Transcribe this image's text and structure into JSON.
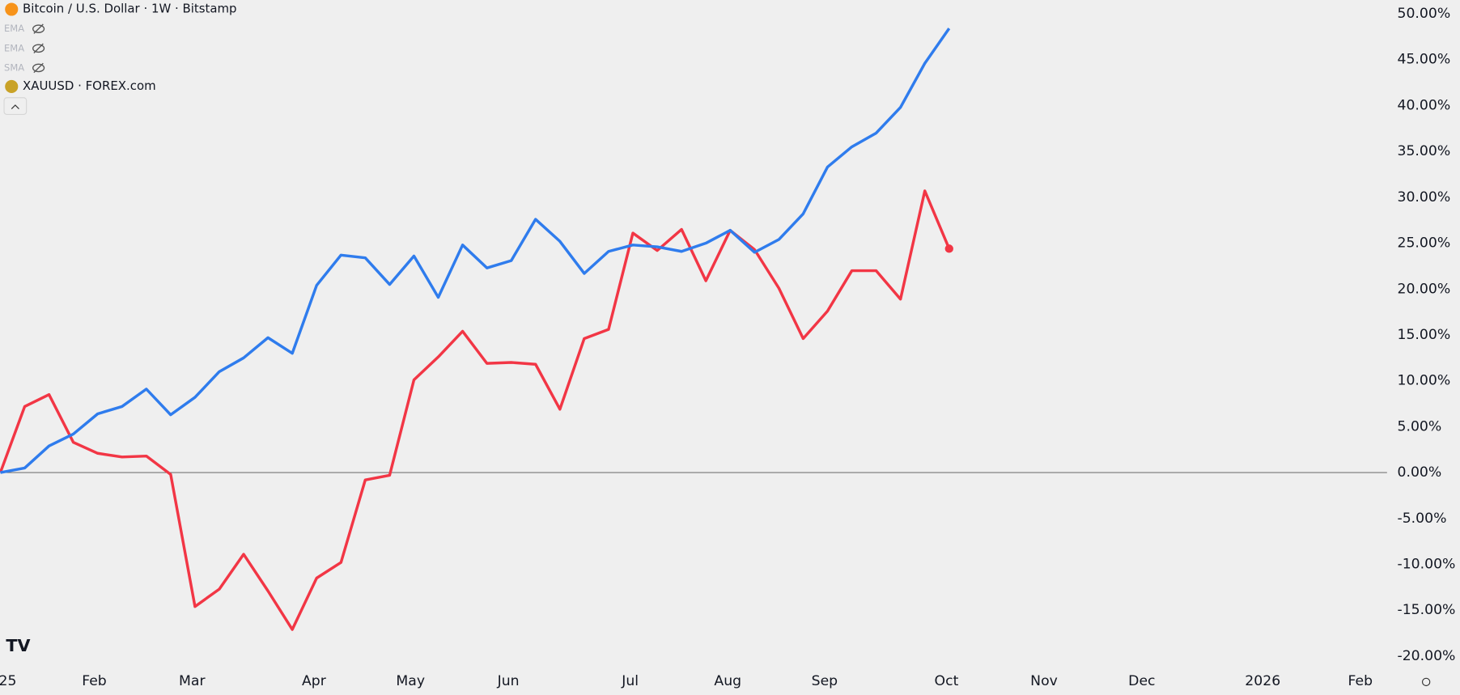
{
  "chart_data": {
    "type": "line",
    "legend_title": "Bitcoin / U.S. Dollar · 1W · Bitstamp",
    "indicators": [
      "EMA",
      "EMA",
      "SMA"
    ],
    "x": [
      0,
      1,
      2,
      3,
      4,
      5,
      6,
      7,
      8,
      9,
      10,
      11,
      12,
      13,
      14,
      15,
      16,
      17,
      18,
      19,
      20,
      21,
      22,
      23,
      24,
      25,
      26,
      27,
      28,
      29,
      30,
      31,
      32,
      33,
      34,
      35,
      36,
      37,
      38,
      39
    ],
    "series": [
      {
        "name": "Bitcoin / U.S. Dollar · 1W · Bitstamp",
        "color": "#f23645",
        "values": [
          0,
          7.2,
          8.5,
          3.3,
          2.1,
          1.7,
          1.8,
          -0.2,
          -14.6,
          -12.7,
          -8.9,
          -12.9,
          -17.1,
          -11.5,
          -9.8,
          -0.8,
          -0.3,
          10.1,
          12.6,
          15.4,
          11.9,
          12.0,
          11.8,
          6.9,
          14.6,
          15.6,
          26.1,
          24.2,
          26.5,
          20.9,
          26.4,
          24.3,
          20.1,
          14.6,
          17.6,
          22.0,
          22.0,
          18.9,
          30.7,
          24.4
        ]
      },
      {
        "name": "XAUUSD · FOREX.com",
        "color": "#2f7ced",
        "values": [
          0,
          0.5,
          2.9,
          4.2,
          6.4,
          7.2,
          9.1,
          6.3,
          8.2,
          11.0,
          12.5,
          14.7,
          13.0,
          20.4,
          23.7,
          23.4,
          20.5,
          23.6,
          19.1,
          24.8,
          22.3,
          23.1,
          27.6,
          25.2,
          21.7,
          24.1,
          24.8,
          24.6,
          24.1,
          25.0,
          26.4,
          24.0,
          25.4,
          28.2,
          33.3,
          35.5,
          37.0,
          39.8,
          44.6,
          48.4
        ]
      }
    ],
    "xlim": [
      0,
      57
    ],
    "xticks": [
      {
        "value": 0.3,
        "label": "25"
      },
      {
        "value": 3.86,
        "label": "Feb"
      },
      {
        "value": 7.88,
        "label": "Mar"
      },
      {
        "value": 12.89,
        "label": "Apr"
      },
      {
        "value": 16.86,
        "label": "May"
      },
      {
        "value": 20.88,
        "label": "Jun"
      },
      {
        "value": 25.89,
        "label": "Jul"
      },
      {
        "value": 29.9,
        "label": "Aug"
      },
      {
        "value": 33.88,
        "label": "Sep"
      },
      {
        "value": 38.89,
        "label": "Oct"
      },
      {
        "value": 42.9,
        "label": "Nov"
      },
      {
        "value": 46.92,
        "label": "Dec"
      },
      {
        "value": 51.89,
        "label": "2026"
      },
      {
        "value": 55.9,
        "label": "Feb"
      }
    ],
    "ylim": [
      -21.3,
      51.5
    ],
    "yticks": [
      {
        "value": 50,
        "label": "50.00%"
      },
      {
        "value": 45,
        "label": "45.00%"
      },
      {
        "value": 40,
        "label": "40.00%"
      },
      {
        "value": 35,
        "label": "35.00%"
      },
      {
        "value": 30,
        "label": "30.00%"
      },
      {
        "value": 25,
        "label": "25.00%"
      },
      {
        "value": 20,
        "label": "20.00%"
      },
      {
        "value": 15,
        "label": "15.00%"
      },
      {
        "value": 10,
        "label": "10.00%"
      },
      {
        "value": 5,
        "label": "5.00%"
      },
      {
        "value": 0,
        "label": "0.00%"
      },
      {
        "value": -5,
        "label": "-5.00%"
      },
      {
        "value": -10,
        "label": "-10.00%"
      },
      {
        "value": -15,
        "label": "-15.00%"
      },
      {
        "value": -20,
        "label": "-20.00%"
      }
    ],
    "zero_line": true,
    "end_dot": true
  }
}
